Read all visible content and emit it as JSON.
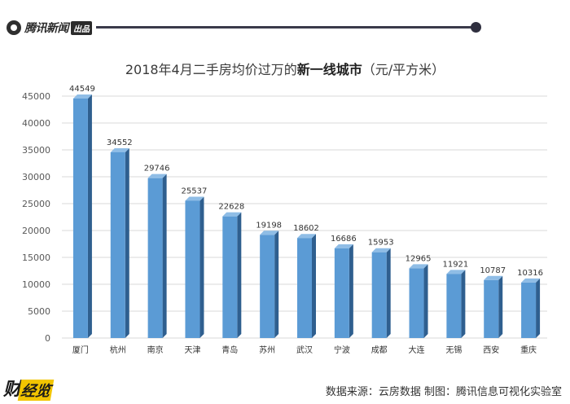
{
  "header": {
    "logo_text": "腾讯新闻",
    "logo_badge": "出品"
  },
  "title_parts": {
    "prefix": "2018年4月二手房均价过万的",
    "bold": "新一线城市",
    "suffix": "（元/平方米）"
  },
  "source": "数据来源：云房数据  制图：腾讯信息可视化实验室",
  "footer_logo": {
    "main": "财",
    "accent": "经览"
  },
  "colors": {
    "bar_front": "#5b9bd5",
    "bar_side": "#2f5f8f",
    "bar_top": "#8fbde6"
  },
  "chart_data": {
    "type": "bar",
    "title": "2018年4月二手房均价过万的新一线城市（元/平方米）",
    "categories": [
      "厦门",
      "杭州",
      "南京",
      "天津",
      "青岛",
      "苏州",
      "武汉",
      "宁波",
      "成都",
      "大连",
      "无锡",
      "西安",
      "重庆"
    ],
    "values": [
      44549,
      34552,
      29746,
      25537,
      22628,
      19198,
      18602,
      16686,
      15953,
      12965,
      11921,
      10787,
      10316
    ],
    "ylim": [
      0,
      45000
    ],
    "yticks": [
      0,
      5000,
      10000,
      15000,
      20000,
      25000,
      30000,
      35000,
      40000,
      45000
    ],
    "grid": true,
    "xlabel": "",
    "ylabel": ""
  }
}
